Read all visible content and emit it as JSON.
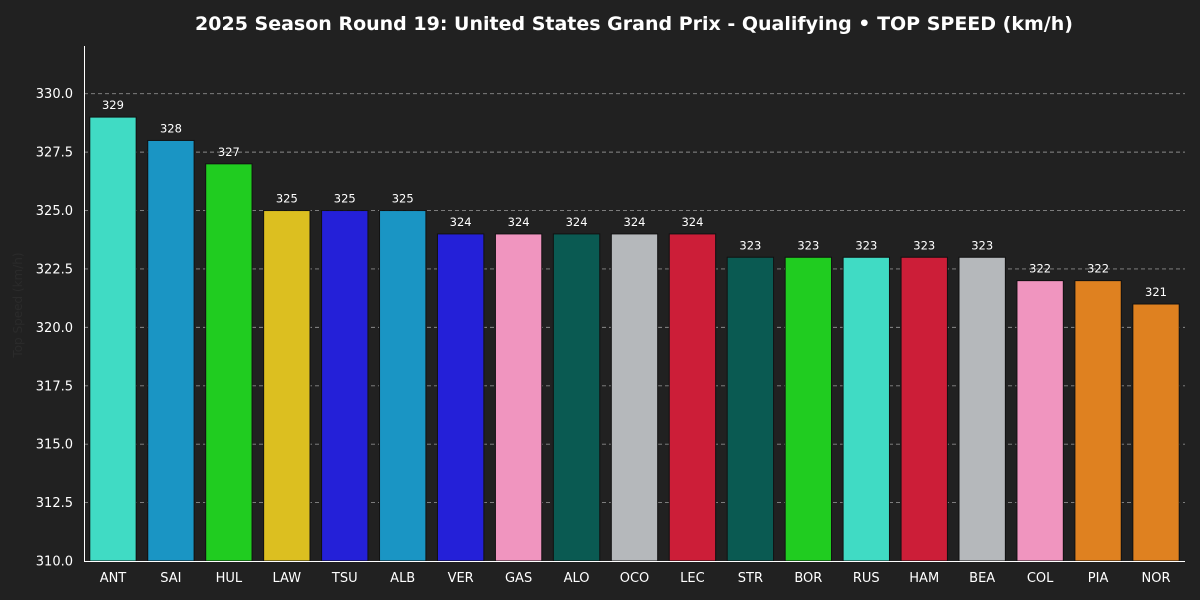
{
  "chart_data": {
    "type": "bar",
    "title": "2025 Season Round 19: United States Grand Prix - Qualifying  •  TOP SPEED (km/h)",
    "xlabel": "",
    "ylabel": "Top Speed (km/h)",
    "ylim": [
      310.0,
      332.0
    ],
    "yticks": [
      "310.0",
      "312.5",
      "315.0",
      "317.5",
      "320.0",
      "322.5",
      "325.0",
      "327.5",
      "330.0"
    ],
    "grid": true,
    "categories": [
      "ANT",
      "SAI",
      "HUL",
      "LAW",
      "TSU",
      "ALB",
      "VER",
      "GAS",
      "ALO",
      "OCO",
      "LEC",
      "STR",
      "BOR",
      "RUS",
      "HAM",
      "BEA",
      "COL",
      "PIA",
      "NOR"
    ],
    "values": [
      329,
      328,
      327,
      325,
      325,
      325,
      324,
      324,
      324,
      324,
      324,
      323,
      323,
      323,
      323,
      323,
      322,
      322,
      321
    ],
    "colors": [
      "#40dbc4",
      "#1a95c4",
      "#20cc20",
      "#dcbf20",
      "#2420d8",
      "#1a95c4",
      "#2420d8",
      "#f095bf",
      "#0a5a52",
      "#b5b8bb",
      "#cc1e38",
      "#0a5a52",
      "#20cc20",
      "#40dbc4",
      "#cc1e38",
      "#b5b8bb",
      "#f095bf",
      "#df8120",
      "#df8120"
    ]
  }
}
